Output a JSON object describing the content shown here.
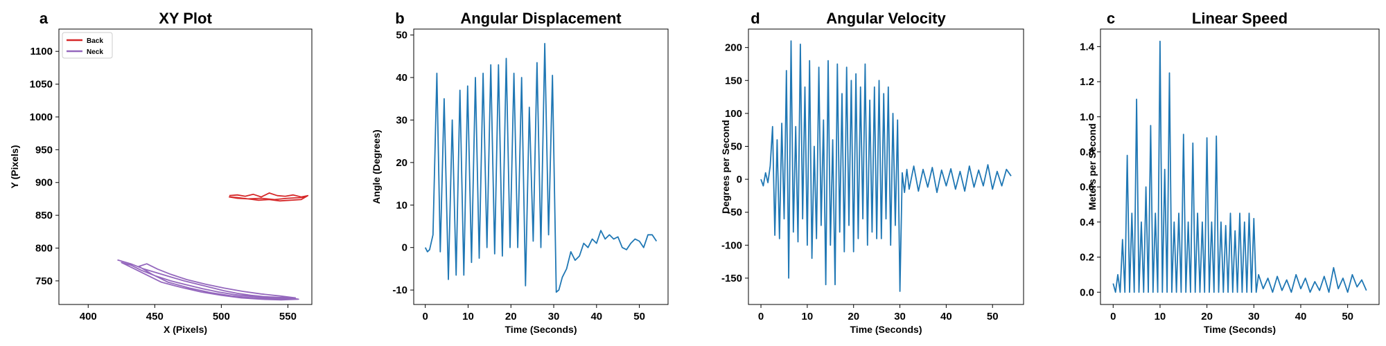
{
  "chart_data": [
    {
      "id": "a",
      "panel_letter": "a",
      "type": "line",
      "title": "XY Plot",
      "xlabel": "X (Pixels)",
      "ylabel": "Y (Pixels)",
      "xlim": [
        378,
        568
      ],
      "ylim": [
        714,
        1134
      ],
      "xticks": [
        400,
        450,
        500,
        550
      ],
      "yticks": [
        750,
        800,
        850,
        900,
        950,
        1000,
        1050,
        1100
      ],
      "legend": {
        "position": "upper-left",
        "entries": [
          "Back",
          "Neck"
        ]
      },
      "series": [
        {
          "name": "Back",
          "color": "#d62728",
          "x": [
            506,
            512,
            518,
            524,
            530,
            536,
            542,
            548,
            554,
            560,
            565,
            560,
            552,
            544,
            536,
            528,
            520,
            512,
            506,
            512,
            520,
            530,
            540,
            550,
            560,
            564
          ],
          "y": [
            880,
            881,
            879,
            882,
            878,
            884,
            880,
            879,
            881,
            878,
            880,
            874,
            873,
            872,
            874,
            873,
            875,
            876,
            878,
            877,
            875,
            876,
            874,
            876,
            877,
            879
          ]
        },
        {
          "name": "Neck",
          "color": "#9467bd",
          "x": [
            422,
            432,
            442,
            452,
            462,
            472,
            482,
            492,
            502,
            512,
            522,
            532,
            542,
            552,
            558,
            545,
            530,
            515,
            500,
            485,
            470,
            455,
            445,
            435,
            425,
            432,
            440,
            450,
            462,
            474,
            486,
            498,
            510,
            524,
            538,
            552,
            556,
            540,
            524,
            508,
            492,
            476,
            460,
            448,
            438,
            444,
            452,
            462,
            474,
            488,
            502,
            516,
            530,
            544,
            556
          ],
          "y": [
            782,
            776,
            768,
            762,
            756,
            750,
            745,
            740,
            735,
            731,
            728,
            726,
            725,
            724,
            722,
            721,
            722,
            724,
            728,
            733,
            740,
            748,
            758,
            768,
            778,
            774,
            766,
            758,
            750,
            744,
            738,
            733,
            729,
            726,
            724,
            723,
            722,
            722,
            724,
            727,
            732,
            739,
            748,
            760,
            772,
            776,
            768,
            760,
            752,
            745,
            739,
            734,
            730,
            727,
            724
          ]
        }
      ]
    },
    {
      "id": "b",
      "panel_letter": "b",
      "type": "line",
      "title": "Angular Displacement",
      "xlabel": "Time (Seconds)",
      "ylabel": "Angle (Degrees)",
      "xlim": [
        -2.7,
        56.7
      ],
      "ylim": [
        -13.4,
        51.4
      ],
      "xticks": [
        0,
        10,
        20,
        30,
        40,
        50
      ],
      "yticks": [
        -10,
        0,
        10,
        20,
        30,
        40,
        50
      ],
      "series": [
        {
          "color": "#1f77b4",
          "x": [
            0,
            0.5,
            1,
            1.8,
            2.7,
            3.5,
            4.4,
            5.4,
            6.3,
            7.2,
            8.1,
            9.0,
            9.9,
            10.8,
            11.7,
            12.6,
            13.5,
            14.4,
            15.3,
            16.2,
            17.1,
            18.0,
            18.9,
            19.8,
            20.7,
            21.6,
            22.5,
            23.4,
            24.3,
            25.2,
            26.1,
            27.0,
            27.9,
            28.8,
            29.7,
            30.6,
            31.2,
            32.0,
            33.0,
            34.0,
            35.0,
            36.0,
            37.0,
            38.0,
            39.0,
            40.0,
            41.0,
            42.0,
            43.0,
            44.0,
            45.0,
            46.0,
            47.0,
            48.0,
            49.0,
            50.0,
            51.0,
            52.0,
            53.0,
            54.0
          ],
          "y": [
            0,
            -1,
            -0.5,
            3,
            41,
            -1,
            35,
            -7.5,
            30,
            -6.5,
            37,
            -6.5,
            38,
            -3.5,
            40,
            -2.5,
            41,
            0,
            43,
            -1.5,
            43,
            -2,
            44.5,
            0,
            41,
            0,
            40,
            -9,
            33,
            1.5,
            43.5,
            0,
            48,
            3,
            40.5,
            -10.5,
            -10,
            -7,
            -5,
            -1,
            -3,
            -2,
            1,
            0,
            2,
            1,
            4,
            2,
            3,
            2,
            2.5,
            0,
            -0.5,
            1,
            2,
            1.5,
            0,
            3,
            3,
            1.5
          ]
        }
      ]
    },
    {
      "id": "d",
      "panel_letter": "d",
      "type": "line",
      "title": "Angular Velocity",
      "xlabel": "Time (Seconds)",
      "ylabel": "Degrees per Second",
      "xlim": [
        -2.7,
        56.7
      ],
      "ylim": [
        -190,
        228
      ],
      "xticks": [
        0,
        10,
        20,
        30,
        40,
        50
      ],
      "yticks": [
        -150,
        -100,
        -50,
        0,
        50,
        100,
        150,
        200
      ],
      "series": [
        {
          "color": "#1f77b4",
          "x": [
            0,
            0.5,
            1.0,
            1.5,
            2.0,
            2.5,
            3.0,
            3.5,
            4.0,
            4.5,
            5.0,
            5.5,
            6.0,
            6.5,
            7.0,
            7.5,
            8.0,
            8.5,
            9.0,
            9.5,
            10.0,
            10.5,
            11.0,
            11.5,
            12.0,
            12.5,
            13.0,
            13.5,
            14.0,
            14.5,
            15.0,
            15.5,
            16.0,
            16.5,
            17.0,
            17.5,
            18.0,
            18.5,
            19.0,
            19.5,
            20.0,
            20.5,
            21.0,
            21.5,
            22.0,
            22.5,
            23.0,
            23.5,
            24.0,
            24.5,
            25.0,
            25.5,
            26.0,
            26.5,
            27.0,
            27.5,
            28.0,
            28.5,
            29.0,
            29.5,
            30.0,
            30.5,
            31.0,
            31.5,
            32.0,
            33.0,
            34.0,
            35.0,
            36.0,
            37.0,
            38.0,
            39.0,
            40.0,
            41.0,
            42.0,
            43.0,
            44.0,
            45.0,
            46.0,
            47.0,
            48.0,
            49.0,
            50.0,
            51.0,
            52.0,
            53.0,
            54.0
          ],
          "y": [
            0,
            -10,
            10,
            -5,
            20,
            80,
            -85,
            60,
            -90,
            85,
            -60,
            165,
            -150,
            210,
            -80,
            80,
            -95,
            205,
            -60,
            140,
            -100,
            180,
            -120,
            50,
            -90,
            170,
            -70,
            90,
            -160,
            180,
            -100,
            60,
            -160,
            175,
            -80,
            130,
            -110,
            170,
            -70,
            150,
            -110,
            160,
            -90,
            140,
            -60,
            175,
            -100,
            120,
            -80,
            140,
            -90,
            150,
            -90,
            130,
            -60,
            140,
            -100,
            100,
            -70,
            90,
            -170,
            10,
            -20,
            15,
            -15,
            20,
            -18,
            15,
            -12,
            18,
            -20,
            14,
            -10,
            16,
            -15,
            12,
            -18,
            20,
            -12,
            14,
            -10,
            22,
            -15,
            12,
            -10,
            15,
            5
          ]
        }
      ]
    },
    {
      "id": "c",
      "panel_letter": "c",
      "type": "line",
      "title": "Linear Speed",
      "xlabel": "Time (Seconds)",
      "ylabel": "Meters per Second",
      "xlim": [
        -2.7,
        56.7
      ],
      "ylim": [
        -0.07,
        1.5
      ],
      "xticks": [
        0,
        10,
        20,
        30,
        40,
        50
      ],
      "yticks": [
        0.0,
        0.2,
        0.4,
        0.6,
        0.8,
        1.0,
        1.2,
        1.4
      ],
      "series": [
        {
          "color": "#1f77b4",
          "x": [
            0,
            0.5,
            1.0,
            1.5,
            2.0,
            2.5,
            3.0,
            3.5,
            4.0,
            4.5,
            5.0,
            5.5,
            6.0,
            6.5,
            7.0,
            7.5,
            8.0,
            8.5,
            9.0,
            9.5,
            10.0,
            10.5,
            11.0,
            11.5,
            12.0,
            12.5,
            13.0,
            13.5,
            14.0,
            14.5,
            15.0,
            15.5,
            16.0,
            16.5,
            17.0,
            17.5,
            18.0,
            18.5,
            19.0,
            19.5,
            20.0,
            20.5,
            21.0,
            21.5,
            22.0,
            22.5,
            23.0,
            23.5,
            24.0,
            24.5,
            25.0,
            25.5,
            26.0,
            26.5,
            27.0,
            27.5,
            28.0,
            28.5,
            29.0,
            29.5,
            30.0,
            30.5,
            31.0,
            32.0,
            33.0,
            34.0,
            35.0,
            36.0,
            37.0,
            38.0,
            39.0,
            40.0,
            41.0,
            42.0,
            43.0,
            44.0,
            45.0,
            46.0,
            47.0,
            48.0,
            49.0,
            50.0,
            51.0,
            52.0,
            53.0,
            54.0
          ],
          "y": [
            0.05,
            0.0,
            0.1,
            0.0,
            0.3,
            0.0,
            0.78,
            0.0,
            0.45,
            0.0,
            1.1,
            0.0,
            0.4,
            0.0,
            0.6,
            0.0,
            0.95,
            0.0,
            0.45,
            0.0,
            1.43,
            0.0,
            0.7,
            0.0,
            1.25,
            0.0,
            0.4,
            0.0,
            0.45,
            0.0,
            0.9,
            0.0,
            0.4,
            0.0,
            0.85,
            0.0,
            0.45,
            0.0,
            0.4,
            0.0,
            0.88,
            0.0,
            0.4,
            0.0,
            0.89,
            0.0,
            0.4,
            0.0,
            0.38,
            0.0,
            0.45,
            0.0,
            0.35,
            0.0,
            0.45,
            0.0,
            0.4,
            0.0,
            0.45,
            0.0,
            0.42,
            0.0,
            0.1,
            0.02,
            0.08,
            0.0,
            0.09,
            0.01,
            0.07,
            0.0,
            0.1,
            0.02,
            0.08,
            0.0,
            0.06,
            0.01,
            0.09,
            0.0,
            0.14,
            0.02,
            0.08,
            0.0,
            0.1,
            0.03,
            0.07,
            0.01
          ]
        }
      ]
    }
  ]
}
